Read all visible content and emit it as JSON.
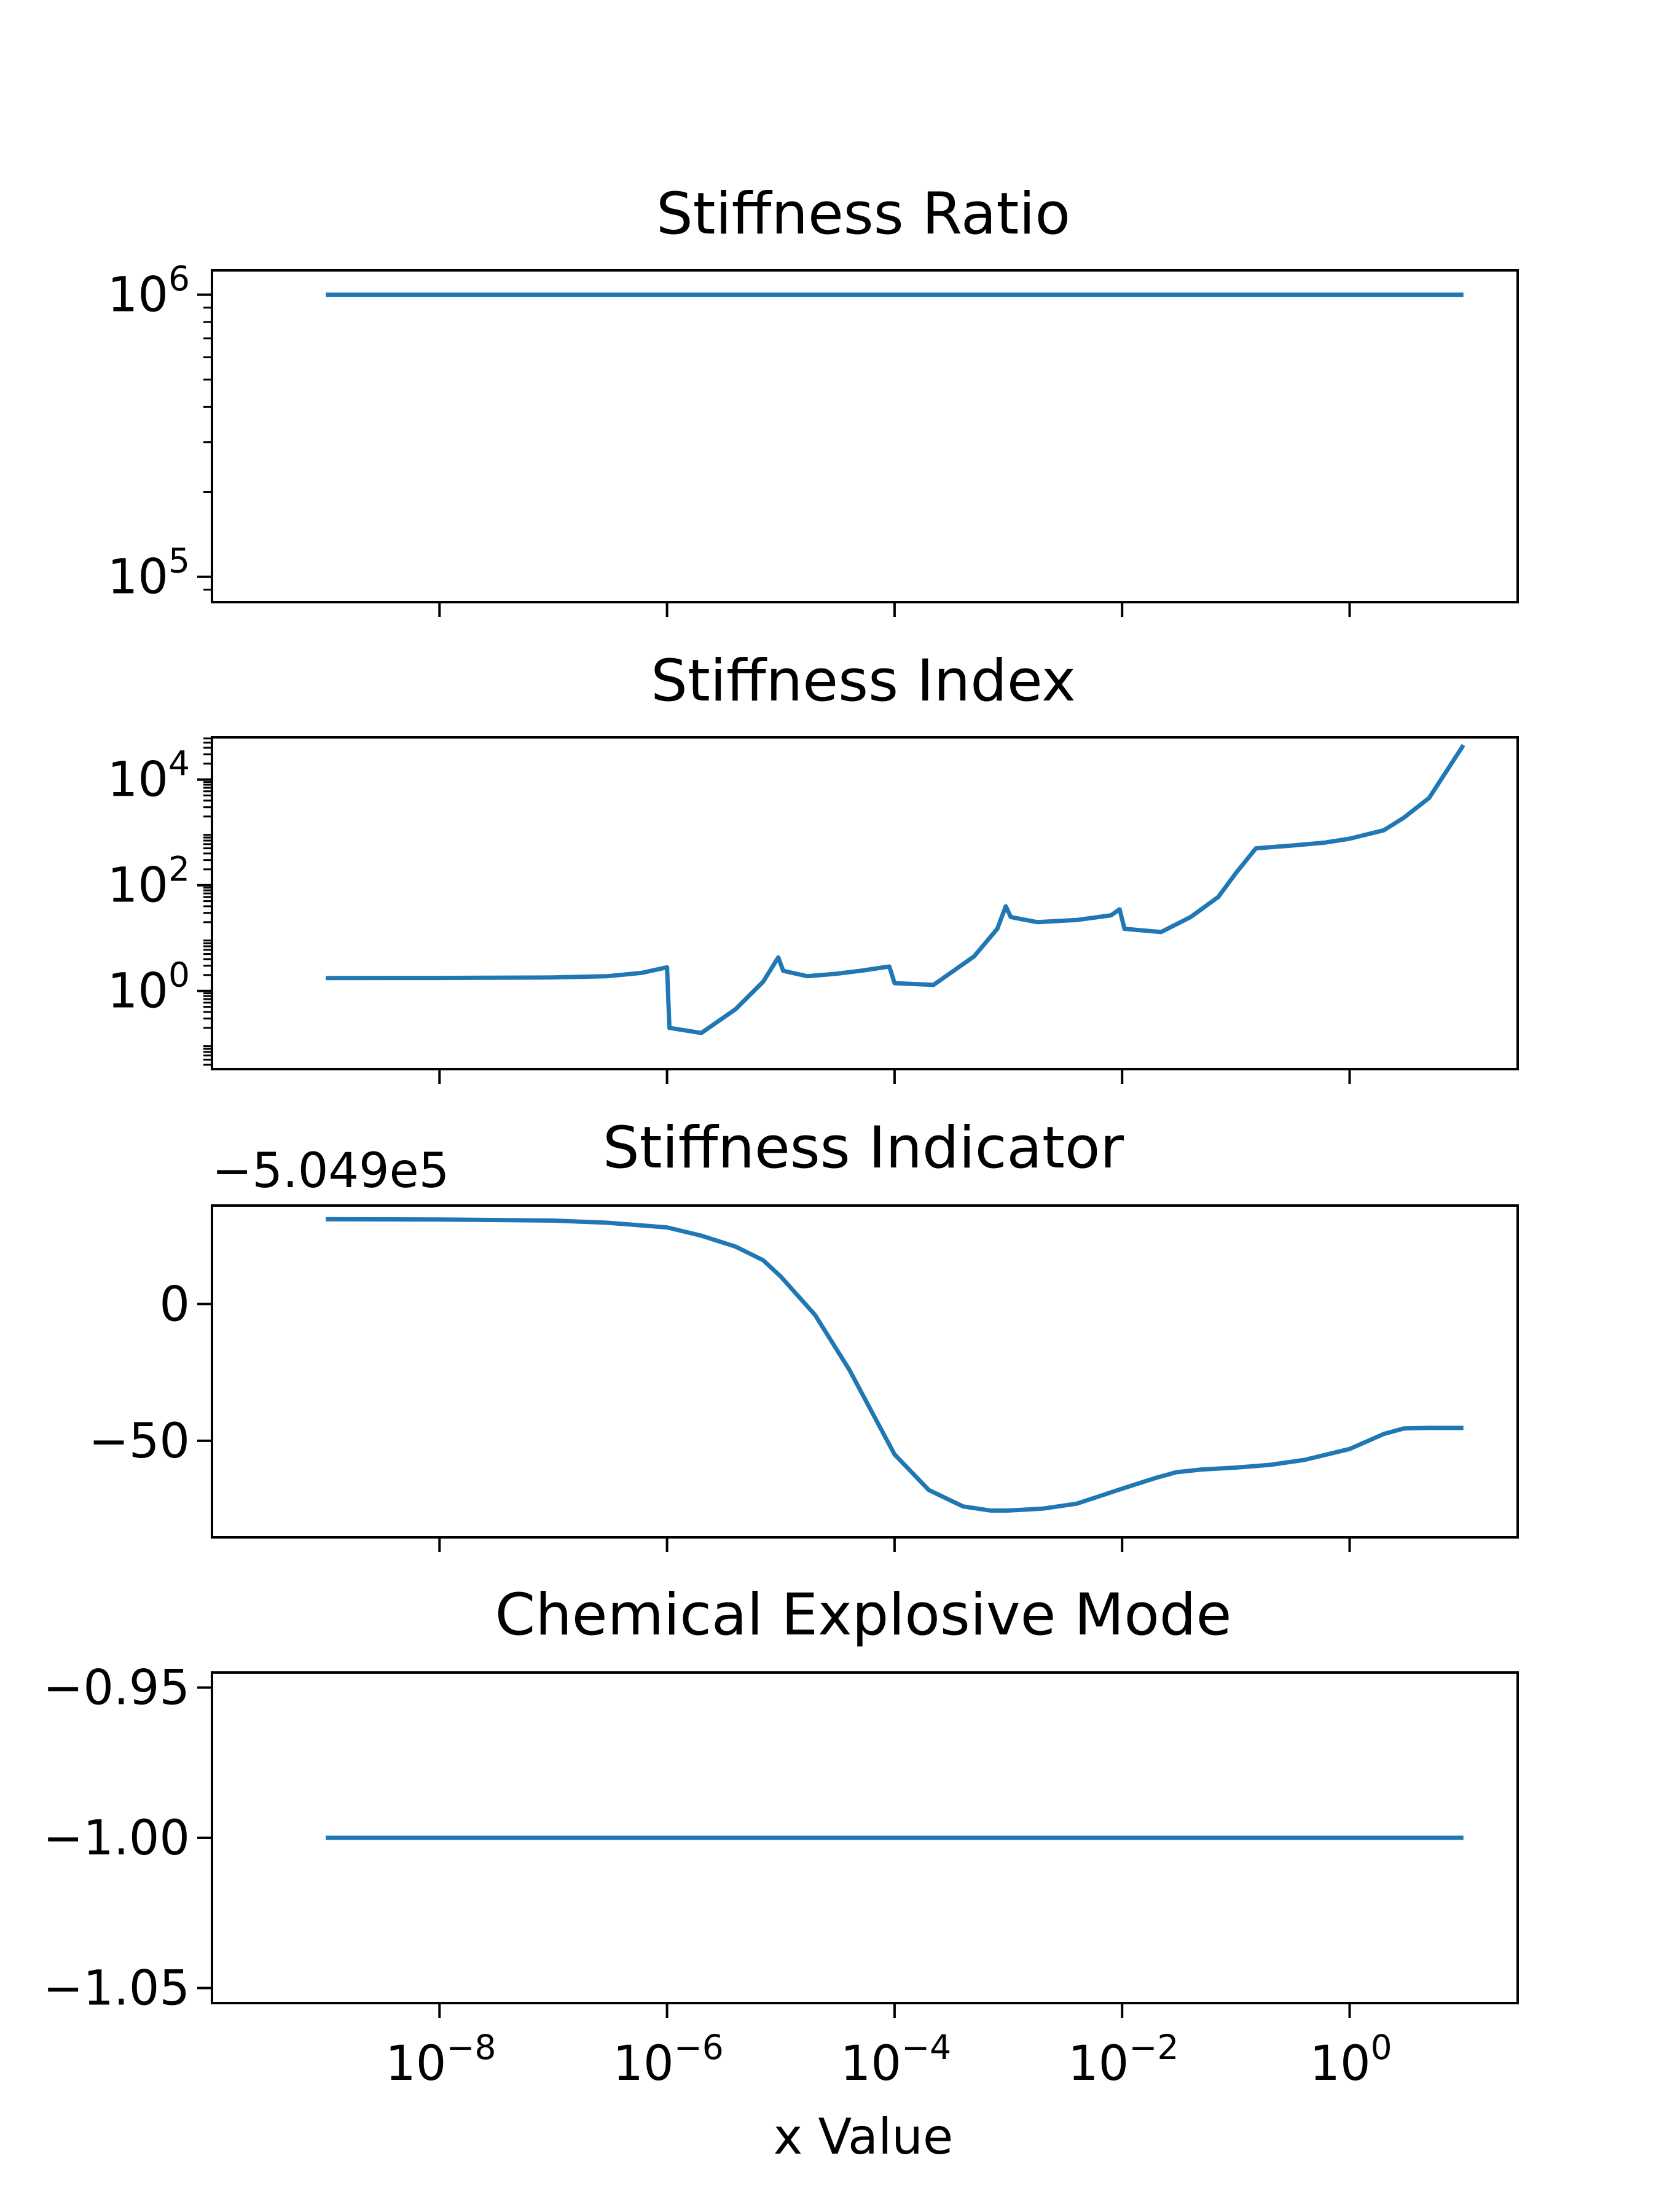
{
  "figure": {
    "xlabel": "x Value",
    "line_color": "#1f77b4"
  },
  "chart_data": [
    {
      "type": "line",
      "title": "Stiffness Ratio",
      "xscale": "log",
      "yscale": "log",
      "xlim": [
        1e-10,
        30
      ],
      "ylim": [
        81300,
        1220000
      ],
      "x_ticks": [
        1e-08,
        1e-06,
        0.0001,
        0.01,
        1
      ],
      "x_ticklabels_shown": false,
      "y_ticks": [
        {
          "value": 1000000,
          "base": "10",
          "exp": "6"
        },
        {
          "value": 100000,
          "base": "10",
          "exp": "5"
        }
      ],
      "series": [
        {
          "x": [
            1e-09,
            10
          ],
          "y": [
            1000000,
            1000000
          ]
        }
      ]
    },
    {
      "type": "line",
      "title": "Stiffness Index",
      "xscale": "log",
      "yscale": "log",
      "xlim": [
        1e-10,
        30
      ],
      "ylim": [
        0.0331,
        63000
      ],
      "x_ticks": [
        1e-08,
        1e-06,
        0.0001,
        0.01,
        1
      ],
      "x_ticklabels_shown": false,
      "y_ticks": [
        {
          "value": 10000,
          "base": "10",
          "exp": "4"
        },
        {
          "value": 100,
          "base": "10",
          "exp": "2"
        },
        {
          "value": 1,
          "base": "10",
          "exp": "0"
        }
      ],
      "series": [
        {
          "x": [
            1e-09,
            1e-08,
            1e-07,
            3e-07,
            6e-07,
            1e-06,
            1.05e-06,
            2e-06,
            4e-06,
            7e-06,
            9.5e-06,
            1.05e-05,
            1.7e-05,
            3e-05,
            5e-05,
            9e-05,
            0.0001,
            0.00022,
            0.0005,
            0.0008,
            0.00095,
            0.00105,
            0.0018,
            0.004,
            0.008,
            0.0095,
            0.0105,
            0.022,
            0.04,
            0.07,
            0.1,
            0.15,
            0.3,
            0.6,
            1,
            2,
            3,
            5,
            10
          ],
          "y": [
            1.75,
            1.76,
            1.8,
            1.9,
            2.2,
            2.8,
            0.2,
            0.16,
            0.45,
            1.5,
            4.3,
            2.4,
            1.9,
            2.1,
            2.4,
            2.9,
            1.4,
            1.3,
            4.5,
            15,
            40,
            25,
            20,
            22,
            27,
            35,
            15,
            13,
            25,
            60,
            170,
            500,
            560,
            640,
            760,
            1100,
            1900,
            4500,
            45000
          ]
        }
      ]
    },
    {
      "type": "line",
      "title": "Stiffness Indicator",
      "offset_text": "−5.049e5",
      "xscale": "log",
      "yscale": "linear",
      "xlim": [
        1e-10,
        30
      ],
      "ylim": [
        -85.3,
        36
      ],
      "x_ticks": [
        1e-08,
        1e-06,
        0.0001,
        0.01,
        1
      ],
      "x_ticklabels_shown": false,
      "y_ticks": [
        {
          "value": 0,
          "label": "0"
        },
        {
          "value": -50,
          "label": "−50"
        }
      ],
      "series": [
        {
          "x": [
            1e-09,
            1e-08,
            1e-07,
            3e-07,
            1e-06,
            2e-06,
            4e-06,
            7e-06,
            1e-05,
            2e-05,
            4e-05,
            0.0001,
            0.0002,
            0.0004,
            0.0007,
            0.001,
            0.002,
            0.004,
            0.01,
            0.02,
            0.03,
            0.05,
            0.1,
            0.2,
            0.4,
            1,
            2,
            3,
            5,
            10
          ],
          "y": [
            31,
            30.9,
            30.5,
            29.7,
            28,
            25,
            21,
            16,
            10,
            -4,
            -24,
            -55,
            -68,
            -74,
            -75.5,
            -75.5,
            -74.8,
            -73,
            -67.5,
            -63.5,
            -61.5,
            -60.5,
            -59.8,
            -58.8,
            -57,
            -53,
            -47.5,
            -45.5,
            -45.3,
            -45.3
          ]
        }
      ]
    },
    {
      "type": "line",
      "title": "Chemical Explosive Mode",
      "xscale": "log",
      "yscale": "linear",
      "xlim": [
        1e-10,
        30
      ],
      "ylim": [
        -1.055,
        -0.945
      ],
      "x_ticks": [
        1e-08,
        1e-06,
        0.0001,
        0.01,
        1
      ],
      "x_ticklabels_shown": true,
      "x_ticklabels": [
        {
          "base": "10",
          "exp": "−8"
        },
        {
          "base": "10",
          "exp": "−6"
        },
        {
          "base": "10",
          "exp": "−4"
        },
        {
          "base": "10",
          "exp": "−2"
        },
        {
          "base": "10",
          "exp": "0"
        }
      ],
      "y_ticks": [
        {
          "value": -0.95,
          "label": "−0.95"
        },
        {
          "value": -1.0,
          "label": "−1.00"
        },
        {
          "value": -1.05,
          "label": "−1.05"
        }
      ],
      "series": [
        {
          "x": [
            1e-09,
            10
          ],
          "y": [
            -1.0,
            -1.0
          ]
        }
      ]
    }
  ]
}
